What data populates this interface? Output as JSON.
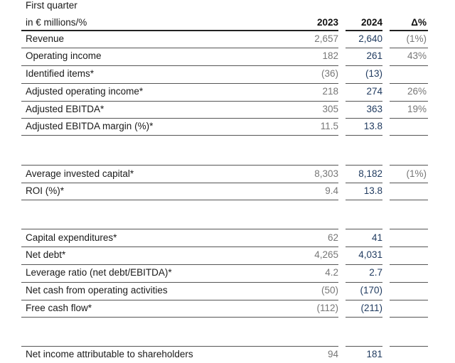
{
  "header": {
    "period": "First quarter",
    "unit": "in € millions/%",
    "col_2023": "2023",
    "col_2024": "2024",
    "col_delta": "Δ%"
  },
  "group1": [
    {
      "label": "Revenue",
      "v2023": "2,657",
      "v2024": "2,640",
      "delta": "(1%)"
    },
    {
      "label": "Operating income",
      "v2023": "182",
      "v2024": "261",
      "delta": "43%"
    },
    {
      "label": "Identified items*",
      "v2023": "(36)",
      "v2024": "(13)",
      "delta": ""
    },
    {
      "label": "Adjusted operating income*",
      "v2023": "218",
      "v2024": "274",
      "delta": "26%"
    },
    {
      "label": "Adjusted EBITDA*",
      "v2023": "305",
      "v2024": "363",
      "delta": "19%"
    },
    {
      "label": "Adjusted EBITDA margin (%)*",
      "v2023": "11.5",
      "v2024": "13.8",
      "delta": ""
    }
  ],
  "group2": [
    {
      "label": "Average invested capital*",
      "v2023": "8,303",
      "v2024": "8,182",
      "delta": "(1%)"
    },
    {
      "label": "ROI (%)*",
      "v2023": "9.4",
      "v2024": "13.8",
      "delta": ""
    }
  ],
  "group3": [
    {
      "label": "Capital expenditures*",
      "v2023": "62",
      "v2024": "41",
      "delta": ""
    },
    {
      "label": "Net debt*",
      "v2023": "4,265",
      "v2024": "4,031",
      "delta": ""
    },
    {
      "label": "Leverage ratio (net debt/EBITDA)*",
      "v2023": "4.2",
      "v2024": "2.7",
      "delta": ""
    },
    {
      "label": "Net cash from operating activities",
      "v2023": "(50)",
      "v2024": "(170)",
      "delta": ""
    },
    {
      "label": "Free cash flow*",
      "v2023": "(112)",
      "v2024": "(211)",
      "delta": ""
    }
  ],
  "group4": [
    {
      "label": "Net income attributable to shareholders",
      "v2023": "94",
      "v2024": "181",
      "delta": ""
    }
  ]
}
